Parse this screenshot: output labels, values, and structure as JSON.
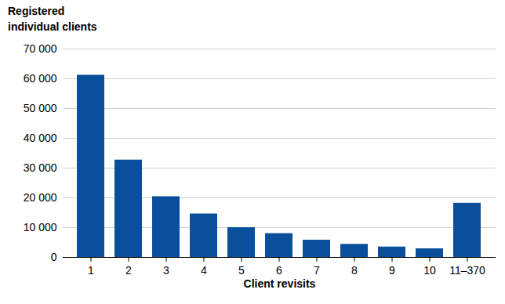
{
  "chart_data": {
    "type": "bar",
    "categories": [
      "1",
      "2",
      "3",
      "4",
      "5",
      "6",
      "7",
      "8",
      "9",
      "10",
      "11–370"
    ],
    "values": [
      61200,
      32700,
      20400,
      14600,
      10000,
      8000,
      5800,
      4400,
      3500,
      2900,
      18200
    ],
    "color": "#0a4f9c",
    "y_label": "Registered individual clients",
    "x_label": "Client revisits",
    "ylim": [
      0,
      70000
    ],
    "yticks": [
      0,
      {
        "value": 10000,
        "label": "10 000"
      },
      {
        "value": 20000,
        "label": "20 000"
      },
      {
        "value": 30000,
        "label": "30 000"
      },
      {
        "value": 40000,
        "label": "40 000"
      },
      {
        "value": 50000,
        "label": "50 000"
      },
      {
        "value": 60000,
        "label": "60 000"
      },
      {
        "value": 70000,
        "label": "70 000"
      }
    ],
    "grid": true
  }
}
